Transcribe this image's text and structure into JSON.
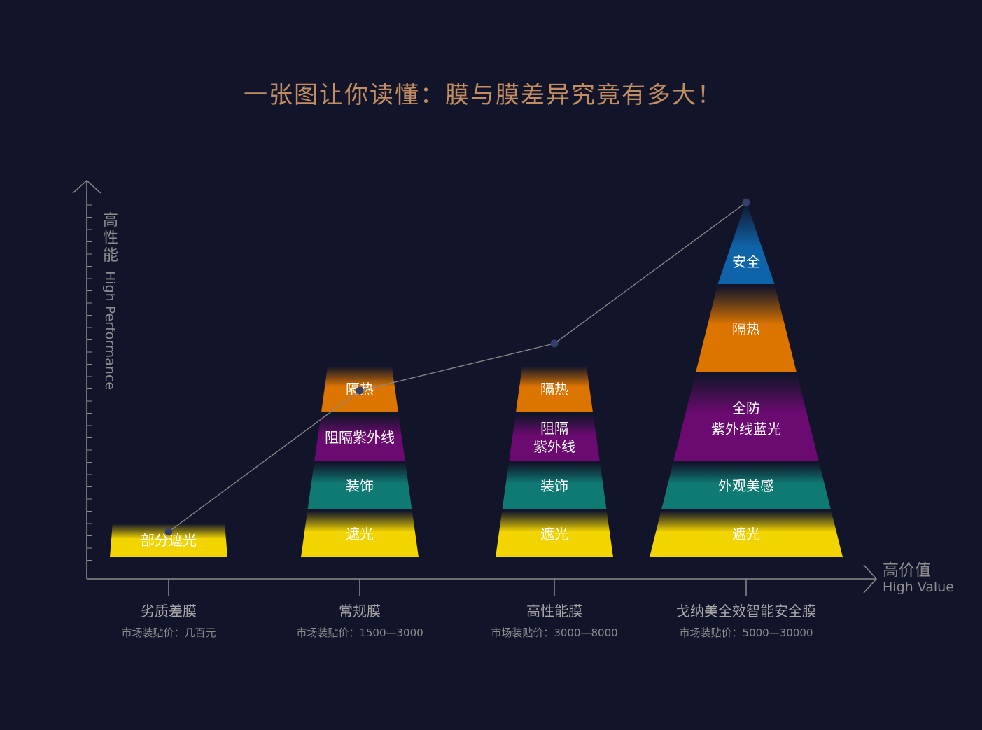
{
  "title": "一张图让你读懂：膜与膜差异究竟有多大！",
  "colors": {
    "background": "#12152a",
    "title": "#c18d61",
    "axis": "#8c8c8c",
    "yellow": "#f2d400",
    "teal": "#0f7a73",
    "purple": "#6b0a70",
    "orange": "#dc7400",
    "blue": "#0f63a8",
    "point": "#34406a"
  },
  "axes": {
    "y_label_cn": "高性能",
    "y_label_en": "High Performance",
    "x_label_cn": "高价值",
    "x_label_en": "High Value"
  },
  "chart_data": {
    "type": "line",
    "title": "一张图让你读懂：膜与膜差异究竟有多大！",
    "xlabel": "高价值 High Value",
    "ylabel": "高性能 High Performance",
    "categories": [
      "劣质差膜",
      "常规膜",
      "高性能膜",
      "戈纳美全效智能安全膜"
    ],
    "prices": [
      "市场装贴价：几百元",
      "市场装贴价：1500—3000",
      "市场装贴价：3000—8000",
      "市场装贴价：5000—30000"
    ],
    "performance": [
      1,
      4,
      5,
      8
    ],
    "ylim": [
      0,
      9
    ],
    "stacks": [
      [
        {
          "label": "部分遮光",
          "color": "yellow"
        }
      ],
      [
        {
          "label": "遮光",
          "color": "yellow"
        },
        {
          "label": "装饰",
          "color": "teal"
        },
        {
          "label": "阻隔紫外线",
          "color": "purple"
        },
        {
          "label": "隔热",
          "color": "orange"
        }
      ],
      [
        {
          "label": "遮光",
          "color": "yellow"
        },
        {
          "label": "装饰",
          "color": "teal"
        },
        {
          "label": "阻隔\n紫外线",
          "color": "purple"
        },
        {
          "label": "隔热",
          "color": "orange"
        }
      ],
      [
        {
          "label": "遮光",
          "color": "yellow"
        },
        {
          "label": "外观美感",
          "color": "teal"
        },
        {
          "label": "全防\n紫外线蓝光",
          "color": "purple"
        },
        {
          "label": "隔热",
          "color": "orange"
        },
        {
          "label": "安全",
          "color": "blue"
        }
      ]
    ]
  }
}
